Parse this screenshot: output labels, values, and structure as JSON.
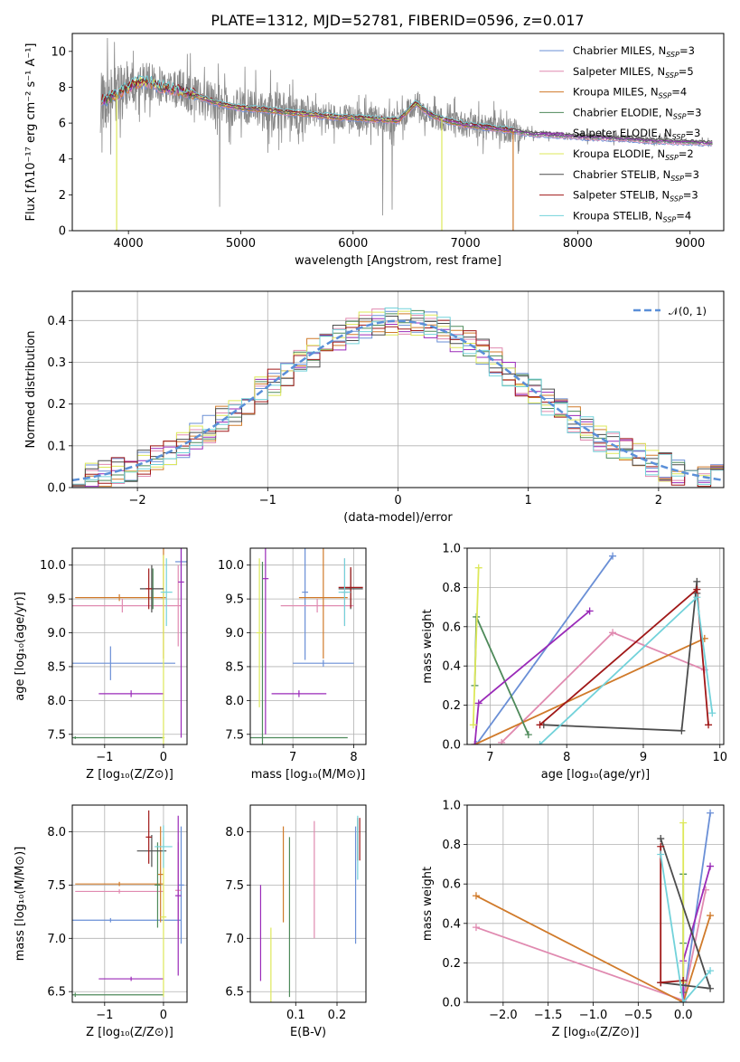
{
  "title": "PLATE=1312, MJD=52781, FIBERID=0596, z=0.017",
  "colors": {
    "c1": "#6a8fd6",
    "c2": "#e08ab0",
    "c3": "#d07a2a",
    "c4": "#4e8a5a",
    "c5": "#9a2ab8",
    "c6": "#dde85a",
    "c7": "#4c4c4c",
    "c8": "#a01818",
    "c9": "#72d2da",
    "data": "#888888",
    "grid": "#b0b0b0"
  },
  "models": [
    {
      "name": "Chabrier MILES, N",
      "sub": "SSP",
      "eq": "=3",
      "color": "#6a8fd6"
    },
    {
      "name": "Salpeter MILES, N",
      "sub": "SSP",
      "eq": "=5",
      "color": "#e08ab0"
    },
    {
      "name": "Kroupa MILES, N",
      "sub": "SSP",
      "eq": "=4",
      "color": "#d07a2a"
    },
    {
      "name": "Chabrier ELODIE, N",
      "sub": "SSP",
      "eq": "=3",
      "color": "#4e8a5a"
    },
    {
      "name": "Salpeter ELODIE, N",
      "sub": "SSP",
      "eq": "=3",
      "color": "#9a2ab8"
    },
    {
      "name": "Kroupa ELODIE, N",
      "sub": "SSP",
      "eq": "=2",
      "color": "#dde85a"
    },
    {
      "name": "Chabrier STELIB, N",
      "sub": "SSP",
      "eq": "=3",
      "color": "#4c4c4c"
    },
    {
      "name": "Salpeter STELIB, N",
      "sub": "SSP",
      "eq": "=3",
      "color": "#a01818"
    },
    {
      "name": "Kroupa STELIB, N",
      "sub": "SSP",
      "eq": "=4",
      "color": "#72d2da"
    }
  ],
  "chart_data": [
    {
      "type": "line",
      "id": "spectrum",
      "xlabel": "wavelength [Angstrom, rest frame]",
      "ylabel": "Flux [fλ10⁻¹⁷ erg cm⁻² s⁻¹ A⁻¹]",
      "xlim": [
        3500,
        9300
      ],
      "ylim": [
        0,
        11
      ],
      "xticks": [
        "4000",
        "5000",
        "6000",
        "7000",
        "8000",
        "9000"
      ],
      "yticks": [
        "0",
        "2",
        "4",
        "6",
        "8",
        "10"
      ],
      "continuum": {
        "x": [
          3750,
          3900,
          4000,
          4100,
          4200,
          4300,
          4400,
          4500,
          4600,
          4700,
          4800,
          4900,
          5000,
          5100,
          5200,
          5400,
          5600,
          5800,
          6000,
          6200,
          6400,
          6560,
          6600,
          6700,
          6800,
          7000,
          7200,
          7400,
          7600,
          7800,
          8000,
          8200,
          8400,
          8600,
          8800,
          9000,
          9200
        ],
        "y": [
          7.2,
          7.6,
          8.0,
          8.3,
          8.25,
          8.0,
          7.9,
          7.75,
          7.55,
          7.3,
          7.1,
          6.95,
          6.85,
          6.8,
          6.75,
          6.6,
          6.5,
          6.35,
          6.3,
          6.2,
          6.15,
          7.1,
          6.9,
          6.45,
          6.2,
          5.9,
          5.75,
          5.6,
          5.4,
          5.35,
          5.25,
          5.2,
          5.15,
          5.05,
          5.0,
          4.95,
          4.9
        ]
      },
      "dropouts": [
        {
          "x": 3895,
          "color": "#dde85a"
        },
        {
          "x": 6790,
          "color": "#dde85a"
        },
        {
          "x": 7425,
          "color": "#d07a2a"
        }
      ],
      "model_end": [
        9200,
        9200,
        7440,
        9200,
        9200,
        6800,
        9200,
        7440,
        7440
      ]
    },
    {
      "type": "line",
      "id": "residual-histogram",
      "xlabel": "(data-model)/error",
      "ylabel": "Normed distribution",
      "xlim": [
        -2.5,
        2.5
      ],
      "ylim": [
        0,
        0.47
      ],
      "xticks": [
        "−2",
        "−1",
        "0",
        "1",
        "2"
      ],
      "yticks": [
        "0.0",
        "0.1",
        "0.2",
        "0.3",
        "0.4"
      ],
      "legend": "𝒩(0, 1)",
      "bin_width": 0.1
    },
    {
      "type": "scatter",
      "id": "age-vs-Z",
      "xlabel": "Z [log₁₀(Z/Z⊙)]",
      "ylabel": "age  [log₁₀(age/yr)]",
      "xlim": [
        -1.55,
        0.4
      ],
      "ylim": [
        7.35,
        10.25
      ],
      "xticks": [
        "−1",
        "0"
      ],
      "yticks": [
        "7.5",
        "8.0",
        "8.5",
        "9.0",
        "9.5",
        "10.0"
      ],
      "points": [
        {
          "m": 0,
          "x": 0.3,
          "y": 10.05,
          "xerr": 0.1,
          "yerr": 0.55
        },
        {
          "m": 0,
          "x": -0.9,
          "y": 8.55,
          "xerr": 1.1,
          "yerr": 0.25
        },
        {
          "m": 1,
          "x": -0.7,
          "y": 9.4,
          "xerr": 0.9,
          "yerr": 0.1
        },
        {
          "m": 1,
          "x": 0.25,
          "y": 9.4,
          "xerr": 0.05,
          "yerr": 0.6
        },
        {
          "m": 2,
          "x": -0.75,
          "y": 9.52,
          "xerr": 0.75,
          "yerr": 0.05
        },
        {
          "m": 2,
          "x": 0.0,
          "y": 9.52,
          "xerr": 0.04,
          "yerr": 0.9
        },
        {
          "m": 3,
          "x": -1.5,
          "y": 7.45,
          "xerr": 1.5,
          "yerr": 0.02
        },
        {
          "m": 3,
          "x": -0.18,
          "y": 9.65,
          "xerr": 0.02,
          "yerr": 0.3
        },
        {
          "m": 4,
          "x": -0.55,
          "y": 8.1,
          "xerr": 0.55,
          "yerr": 0.05
        },
        {
          "m": 4,
          "x": 0.3,
          "y": 9.75,
          "xerr": 0.05,
          "yerr": 2.3
        },
        {
          "m": 5,
          "x": 0.0,
          "y": 7.45,
          "xerr": 0.02,
          "yerr": 2.7
        },
        {
          "m": 6,
          "x": -0.2,
          "y": 9.65,
          "xerr": 0.2,
          "yerr": 0.35
        },
        {
          "m": 7,
          "x": -0.25,
          "y": 9.65,
          "xerr": 0.05,
          "yerr": 0.3
        },
        {
          "m": 8,
          "x": 0.05,
          "y": 9.6,
          "xerr": 0.1,
          "yerr": 0.5
        }
      ]
    },
    {
      "type": "scatter",
      "id": "age-vs-mass",
      "xlabel": "mass [log₁₀(M/M⊙)]",
      "ylabel": "",
      "xlim": [
        6.3,
        8.2
      ],
      "ylim": [
        7.35,
        10.25
      ],
      "xticks": [
        "7",
        "8"
      ],
      "yticks": [
        "7.5",
        "8.0",
        "8.5",
        "9.0",
        "9.5",
        "10.0"
      ],
      "points": [
        {
          "m": 0,
          "x": 7.2,
          "y": 9.6,
          "xerr": 0.05,
          "yerr": 1.0
        },
        {
          "m": 0,
          "x": 7.5,
          "y": 8.55,
          "xerr": 0.5,
          "yerr": 0.05
        },
        {
          "m": 1,
          "x": 7.4,
          "y": 9.4,
          "xerr": 0.6,
          "yerr": 0.1
        },
        {
          "m": 1,
          "x": 7.85,
          "y": 9.6,
          "xerr": 0.05,
          "yerr": 0.5
        },
        {
          "m": 2,
          "x": 7.5,
          "y": 9.52,
          "xerr": 0.4,
          "yerr": 0.9
        },
        {
          "m": 3,
          "x": 6.5,
          "y": 7.45,
          "xerr": 1.4,
          "yerr": 2.6
        },
        {
          "m": 4,
          "x": 7.1,
          "y": 8.1,
          "xerr": 0.45,
          "yerr": 0.05
        },
        {
          "m": 4,
          "x": 6.55,
          "y": 9.8,
          "xerr": 0.05,
          "yerr": 2.3
        },
        {
          "m": 5,
          "x": 6.45,
          "y": 9.0,
          "xerr": 0.05,
          "yerr": 1.1
        },
        {
          "m": 6,
          "x": 7.95,
          "y": 9.65,
          "xerr": 0.2,
          "yerr": 0.3
        },
        {
          "m": 7,
          "x": 7.95,
          "y": 9.67,
          "xerr": 0.2,
          "yerr": 0.3
        },
        {
          "m": 8,
          "x": 7.85,
          "y": 9.6,
          "xerr": 0.1,
          "yerr": 0.5
        }
      ]
    },
    {
      "type": "line",
      "id": "mass-weight-vs-age",
      "xlabel": "age  [log₁₀(age/yr)]",
      "ylabel": "mass weight",
      "xlim": [
        6.7,
        10.05
      ],
      "ylim": [
        0,
        1.0
      ],
      "xticks": [
        "7",
        "8",
        "9",
        "10"
      ],
      "yticks": [
        "0.0",
        "0.2",
        "0.4",
        "0.6",
        "0.8",
        "1.0"
      ],
      "series": [
        {
          "m": 0,
          "x": [
            6.82,
            8.6
          ],
          "y": [
            0.0,
            0.96
          ]
        },
        {
          "m": 1,
          "x": [
            7.15,
            8.6,
            9.8
          ],
          "y": [
            0.01,
            0.57,
            0.38
          ]
        },
        {
          "m": 2,
          "x": [
            6.8,
            9.8
          ],
          "y": [
            0.0,
            0.54
          ]
        },
        {
          "m": 3,
          "x": [
            6.8,
            6.82,
            7.5
          ],
          "y": [
            0.3,
            0.65,
            0.05
          ]
        },
        {
          "m": 4,
          "x": [
            6.8,
            6.85,
            8.3
          ],
          "y": [
            0.0,
            0.21,
            0.68
          ]
        },
        {
          "m": 5,
          "x": [
            6.78,
            6.85
          ],
          "y": [
            0.1,
            0.9
          ]
        },
        {
          "m": 6,
          "x": [
            7.7,
            9.5,
            9.7,
            9.7
          ],
          "y": [
            0.1,
            0.07,
            0.83,
            0.77
          ]
        },
        {
          "m": 7,
          "x": [
            7.65,
            9.7,
            9.85
          ],
          "y": [
            0.1,
            0.79,
            0.1
          ]
        },
        {
          "m": 8,
          "x": [
            7.65,
            9.7,
            9.9
          ],
          "y": [
            0.0,
            0.75,
            0.16
          ]
        }
      ]
    },
    {
      "type": "scatter",
      "id": "mass-vs-Z",
      "xlabel": "Z [log₁₀(Z/Z⊙)]",
      "ylabel": "mass [log₁₀(M/M⊙)]",
      "xlim": [
        -1.55,
        0.4
      ],
      "ylim": [
        6.4,
        8.25
      ],
      "xticks": [
        "−1",
        "0"
      ],
      "yticks": [
        "6.5",
        "7.0",
        "7.5",
        "8.0"
      ],
      "points": [
        {
          "m": 0,
          "x": -0.9,
          "y": 7.17,
          "xerr": 1.2,
          "yerr": 0.02
        },
        {
          "m": 0,
          "x": 0.3,
          "y": 7.5,
          "xerr": 0.05,
          "yerr": 0.55
        },
        {
          "m": 1,
          "x": -0.75,
          "y": 7.44,
          "xerr": 0.75,
          "yerr": 0.02
        },
        {
          "m": 1,
          "x": 0.25,
          "y": 7.45,
          "xerr": 0.05,
          "yerr": 0.45
        },
        {
          "m": 2,
          "x": -0.75,
          "y": 7.51,
          "xerr": 0.75,
          "yerr": 0.02
        },
        {
          "m": 2,
          "x": -0.05,
          "y": 7.6,
          "xerr": 0.05,
          "yerr": 0.45
        },
        {
          "m": 3,
          "x": -1.5,
          "y": 6.47,
          "xerr": 1.5,
          "yerr": 0.02
        },
        {
          "m": 3,
          "x": -0.1,
          "y": 7.5,
          "xerr": 0.05,
          "yerr": 0.4
        },
        {
          "m": 4,
          "x": -0.55,
          "y": 6.62,
          "xerr": 0.55,
          "yerr": 0.02
        },
        {
          "m": 4,
          "x": 0.25,
          "y": 7.4,
          "xerr": 0.05,
          "yerr": 0.75
        },
        {
          "m": 5,
          "x": 0.0,
          "y": 7.2,
          "xerr": 0.05,
          "yerr": 0.75
        },
        {
          "m": 6,
          "x": -0.2,
          "y": 7.82,
          "xerr": 0.25,
          "yerr": 0.15
        },
        {
          "m": 7,
          "x": -0.25,
          "y": 7.95,
          "xerr": 0.05,
          "yerr": 0.25
        },
        {
          "m": 8,
          "x": 0.0,
          "y": 7.86,
          "xerr": 0.15,
          "yerr": 0.2
        }
      ]
    },
    {
      "type": "scatter",
      "id": "mass-vs-ebv",
      "xlabel": "E(B-V)",
      "ylabel": "",
      "xlim": [
        -0.01,
        0.27
      ],
      "ylim": [
        6.4,
        8.25
      ],
      "xticks": [
        "0.1",
        "0.2"
      ],
      "yticks": [
        "6.5",
        "7.0",
        "7.5",
        "8.0"
      ],
      "points": [
        {
          "m": 0,
          "x": 0.245,
          "y": 7.5,
          "xerr": 0.0,
          "yerr": 0.55
        },
        {
          "m": 1,
          "x": 0.145,
          "y": 7.55,
          "xerr": 0.0,
          "yerr": 0.55
        },
        {
          "m": 2,
          "x": 0.07,
          "y": 7.6,
          "xerr": 0.0,
          "yerr": 0.45
        },
        {
          "m": 3,
          "x": 0.085,
          "y": 7.2,
          "xerr": 0.0,
          "yerr": 0.75
        },
        {
          "m": 4,
          "x": 0.015,
          "y": 7.05,
          "xerr": 0.0,
          "yerr": 0.45
        },
        {
          "m": 5,
          "x": 0.04,
          "y": 6.75,
          "xerr": 0.0,
          "yerr": 0.35
        },
        {
          "m": 6,
          "x": 0.25,
          "y": 7.93,
          "xerr": 0.0,
          "yerr": 0.2
        },
        {
          "m": 7,
          "x": 0.255,
          "y": 7.93,
          "xerr": 0.0,
          "yerr": 0.2
        },
        {
          "m": 8,
          "x": 0.25,
          "y": 7.85,
          "xerr": 0.0,
          "yerr": 0.3
        }
      ]
    },
    {
      "type": "line",
      "id": "mass-weight-vs-Z",
      "xlabel": "Z [log₁₀(Z/Z⊙)]",
      "ylabel": "mass weight",
      "xlim": [
        -2.4,
        0.45
      ],
      "ylim": [
        0,
        1.0
      ],
      "xticks": [
        "−2.0",
        "−1.5",
        "−1.0",
        "−0.5",
        "0.0"
      ],
      "yticks": [
        "0.0",
        "0.2",
        "0.4",
        "0.6",
        "0.8",
        "1.0"
      ],
      "series": [
        {
          "m": 0,
          "x": [
            0.0,
            0.3
          ],
          "y": [
            0.0,
            0.96
          ]
        },
        {
          "m": 1,
          "x": [
            -2.3,
            0.0,
            0.25
          ],
          "y": [
            0.38,
            0.01,
            0.57
          ]
        },
        {
          "m": 2,
          "x": [
            -2.3,
            0.0,
            0.3
          ],
          "y": [
            0.54,
            0.0,
            0.44
          ]
        },
        {
          "m": 3,
          "x": [
            0.0,
            0.0,
            0.0
          ],
          "y": [
            0.3,
            0.65,
            0.05
          ]
        },
        {
          "m": 4,
          "x": [
            0.0,
            0.0,
            0.3
          ],
          "y": [
            0.0,
            0.21,
            0.69
          ]
        },
        {
          "m": 5,
          "x": [
            0.0,
            0.0
          ],
          "y": [
            0.1,
            0.91
          ]
        },
        {
          "m": 6,
          "x": [
            -0.25,
            0.3,
            -0.25
          ],
          "y": [
            0.83,
            0.07,
            0.1
          ]
        },
        {
          "m": 7,
          "x": [
            -0.25,
            -0.25,
            0.0
          ],
          "y": [
            0.79,
            0.1,
            0.11
          ]
        },
        {
          "m": 8,
          "x": [
            -0.25,
            0.0,
            0.3
          ],
          "y": [
            0.75,
            0.0,
            0.16
          ]
        }
      ]
    }
  ]
}
